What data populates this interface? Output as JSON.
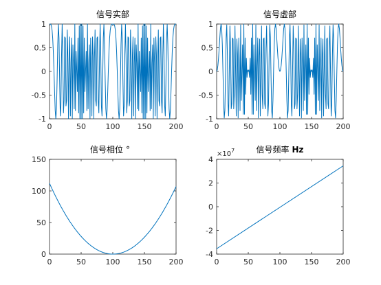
{
  "figure": {
    "background": "#ffffff",
    "axis_color": "#262626",
    "line_color": "#0072bd"
  },
  "chart_data": [
    {
      "id": "real",
      "type": "line",
      "title": "信号实部",
      "title_unit": "",
      "xlim": [
        0,
        200
      ],
      "ylim": [
        -1,
        1
      ],
      "xticks": [
        0,
        50,
        100,
        150,
        200
      ],
      "yticks": [
        -1,
        -0.5,
        0,
        0.5,
        1
      ],
      "xtick_labels": [
        "0",
        "50",
        "100",
        "150",
        "200"
      ],
      "ytick_labels": [
        "-1",
        "-0.5",
        "0",
        "0.5",
        "1"
      ],
      "exponent_label": "",
      "series": [
        {
          "function": "cos(0.01*pi*(x-100)^2)",
          "x_range": [
            0,
            200
          ],
          "samples": 201
        }
      ]
    },
    {
      "id": "imag",
      "type": "line",
      "title": "信号虚部",
      "title_unit": "",
      "xlim": [
        0,
        200
      ],
      "ylim": [
        -1,
        1
      ],
      "xticks": [
        0,
        50,
        100,
        150,
        200
      ],
      "yticks": [
        -1,
        -0.5,
        0,
        0.5,
        1
      ],
      "xtick_labels": [
        "0",
        "50",
        "100",
        "150",
        "200"
      ],
      "ytick_labels": [
        "-1",
        "-0.5",
        "0",
        "0.5",
        "1"
      ],
      "exponent_label": "",
      "series": [
        {
          "function": "sin(0.01*pi*(x-100)^2)",
          "x_range": [
            0,
            200
          ],
          "samples": 201
        }
      ]
    },
    {
      "id": "phase",
      "type": "line",
      "title": "信号相位",
      "title_unit": "°",
      "xlim": [
        0,
        200
      ],
      "ylim": [
        0,
        150
      ],
      "xticks": [
        0,
        50,
        100,
        150,
        200
      ],
      "yticks": [
        0,
        50,
        100,
        150
      ],
      "xtick_labels": [
        "0",
        "50",
        "100",
        "150",
        "200"
      ],
      "ytick_labels": [
        "0",
        "50",
        "100",
        "150"
      ],
      "exponent_label": "",
      "series": [
        {
          "x": [
            0,
            100,
            200
          ],
          "y": [
            112,
            0,
            107
          ],
          "shape": "parabola"
        }
      ]
    },
    {
      "id": "freq",
      "type": "line",
      "title": "信号频率",
      "title_unit": "Hz",
      "xlim": [
        0,
        200
      ],
      "ylim": [
        -4,
        4
      ],
      "xticks": [
        0,
        50,
        100,
        150,
        200
      ],
      "yticks": [
        -4,
        -2,
        0,
        2,
        4
      ],
      "xtick_labels": [
        "0",
        "50",
        "100",
        "150",
        "200"
      ],
      "ytick_labels": [
        "-4",
        "-2",
        "0",
        "2",
        "4"
      ],
      "exponent_label": "×10",
      "exponent_power": "7",
      "series": [
        {
          "x": [
            0,
            200
          ],
          "y": [
            -3.55,
            3.45
          ]
        }
      ]
    }
  ]
}
